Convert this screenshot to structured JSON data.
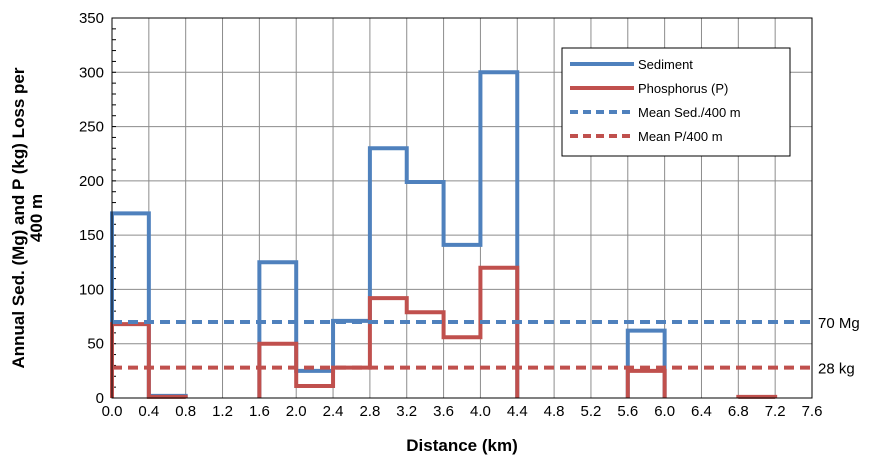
{
  "chart_data": {
    "type": "line",
    "xlabel": "Distance (km)",
    "ylabel": "Annual Sed. (Mg) and P (kg) Loss per 400 m",
    "xlim": [
      0,
      7.6
    ],
    "ylim": [
      0,
      350
    ],
    "x_ticks": [
      "0.0",
      "0.4",
      "0.8",
      "1.2",
      "1.6",
      "2.0",
      "2.4",
      "2.8",
      "3.2",
      "3.6",
      "4.0",
      "4.4",
      "4.8",
      "5.2",
      "5.6",
      "6.0",
      "6.4",
      "6.8",
      "7.2",
      "7.6"
    ],
    "y_ticks": [
      "0",
      "50",
      "100",
      "150",
      "200",
      "250",
      "300",
      "350"
    ],
    "grid": true,
    "legend_position": "top-right",
    "series": [
      {
        "name": "Sediment",
        "style": "solid",
        "color": "#4f81bd",
        "steps": [
          {
            "x0": 0.0,
            "x1": 0.4,
            "y": 170
          },
          {
            "x0": 0.4,
            "x1": 0.8,
            "y": 2
          },
          {
            "x0": 1.6,
            "x1": 2.0,
            "y": 125
          },
          {
            "x0": 2.0,
            "x1": 2.4,
            "y": 25
          },
          {
            "x0": 2.4,
            "x1": 2.8,
            "y": 71
          },
          {
            "x0": 2.8,
            "x1": 3.2,
            "y": 230
          },
          {
            "x0": 3.2,
            "x1": 3.6,
            "y": 199
          },
          {
            "x0": 3.6,
            "x1": 4.0,
            "y": 141
          },
          {
            "x0": 4.0,
            "x1": 4.4,
            "y": 300
          },
          {
            "x0": 5.6,
            "x1": 6.0,
            "y": 62
          }
        ]
      },
      {
        "name": "Phosphorus (P)",
        "style": "solid",
        "color": "#c0504d",
        "steps": [
          {
            "x0": 0.0,
            "x1": 0.4,
            "y": 68
          },
          {
            "x0": 0.4,
            "x1": 0.8,
            "y": 1
          },
          {
            "x0": 1.6,
            "x1": 2.0,
            "y": 50
          },
          {
            "x0": 2.0,
            "x1": 2.4,
            "y": 11
          },
          {
            "x0": 2.4,
            "x1": 2.8,
            "y": 28
          },
          {
            "x0": 2.8,
            "x1": 3.2,
            "y": 92
          },
          {
            "x0": 3.2,
            "x1": 3.6,
            "y": 79
          },
          {
            "x0": 3.6,
            "x1": 4.0,
            "y": 56
          },
          {
            "x0": 4.0,
            "x1": 4.4,
            "y": 120
          },
          {
            "x0": 5.6,
            "x1": 6.0,
            "y": 25
          },
          {
            "x0": 6.8,
            "x1": 7.2,
            "y": 1
          }
        ]
      },
      {
        "name": "Mean Sed./400 m",
        "style": "dashed",
        "color": "#4f81bd",
        "y": 70
      },
      {
        "name": "Mean P/400 m",
        "style": "dashed",
        "color": "#c0504d",
        "y": 28
      }
    ],
    "annotations": [
      {
        "text": "70 Mg",
        "y": 70
      },
      {
        "text": "28 kg",
        "y": 28
      }
    ]
  }
}
